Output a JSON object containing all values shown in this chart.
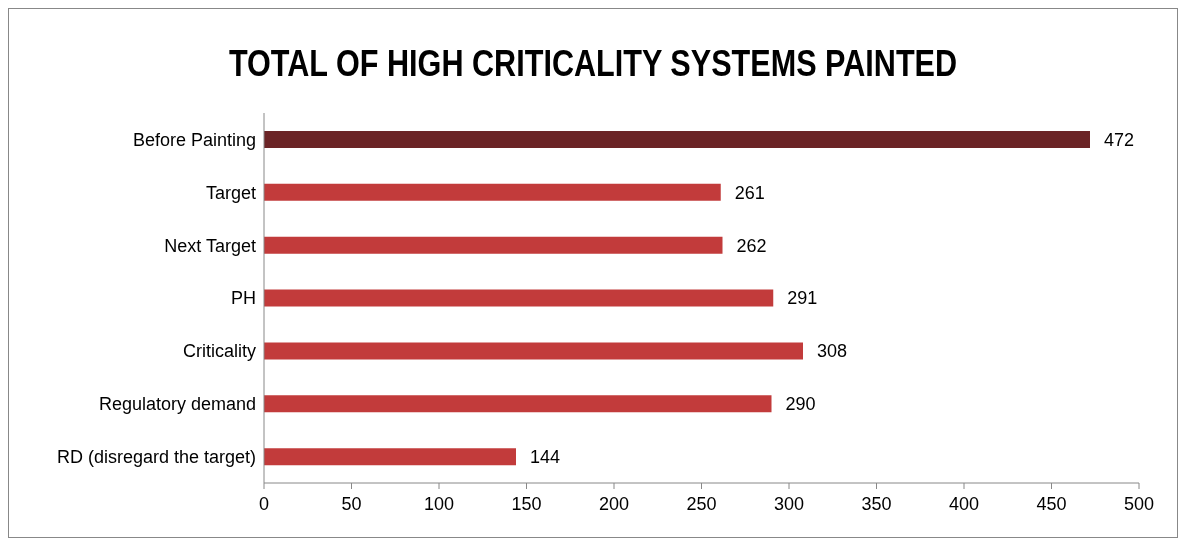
{
  "chart_data": {
    "type": "bar",
    "orientation": "horizontal",
    "title": "TOTAL OF HIGH CRITICALITY SYSTEMS PAINTED",
    "categories": [
      "Before Painting",
      "Target",
      "Next Target",
      "PH",
      "Criticality",
      "Regulatory demand",
      "RD (disregard the target)"
    ],
    "values": [
      472,
      261,
      262,
      291,
      308,
      290,
      144
    ],
    "colors": [
      "#6b2426",
      "#c23b3b",
      "#c23b3b",
      "#c23b3b",
      "#c23b3b",
      "#c23b3b",
      "#c23b3b"
    ],
    "xlim": [
      0,
      500
    ],
    "xticks": [
      0,
      50,
      100,
      150,
      200,
      250,
      300,
      350,
      400,
      450,
      500
    ],
    "grid": false,
    "data_labels": true
  }
}
